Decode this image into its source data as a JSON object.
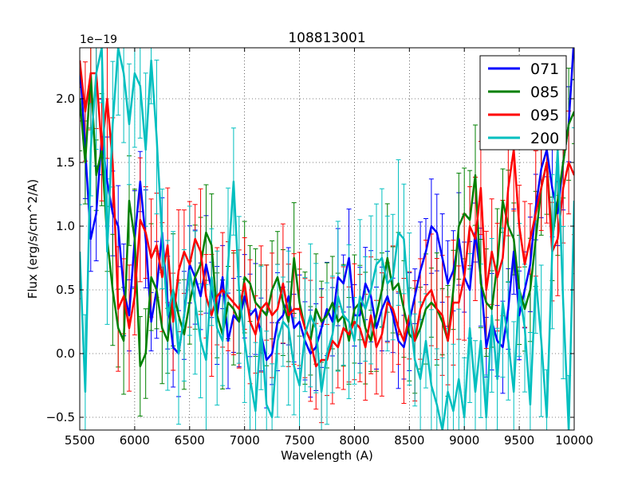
{
  "chart_data": {
    "type": "line",
    "title": "108813001",
    "xlabel": "Wavelength (A)",
    "ylabel": "Flux (erg/s/cm^2/A)",
    "offset_label": "1e−19",
    "xlim": [
      5500,
      10000
    ],
    "ylim": [
      -0.6,
      2.4
    ],
    "xticks": [
      5500,
      6000,
      6500,
      7000,
      7500,
      8000,
      8500,
      9000,
      9500,
      10000
    ],
    "yticks": [
      -0.5,
      0.0,
      0.5,
      1.0,
      1.5,
      2.0
    ],
    "ytick_labels": [
      "−0.5",
      "0.0",
      "0.5",
      "1.0",
      "1.5",
      "2.0"
    ],
    "grid": true,
    "legend_position": "top-right",
    "colors": {
      "071": "#0000ff",
      "085": "#008000",
      "095": "#ff0000",
      "200": "#00bfbf"
    },
    "series": [
      {
        "name": "071",
        "x": [
          5500,
          5550,
          5600,
          5650,
          5700,
          5750,
          5800,
          5850,
          5900,
          5950,
          6000,
          6050,
          6100,
          6150,
          6200,
          6250,
          6300,
          6350,
          6400,
          6450,
          6500,
          6550,
          6600,
          6650,
          6700,
          6750,
          6800,
          6850,
          6900,
          6950,
          7000,
          7050,
          7100,
          7150,
          7200,
          7250,
          7300,
          7350,
          7400,
          7450,
          7500,
          7550,
          7600,
          7650,
          7700,
          7750,
          7800,
          7850,
          7900,
          7950,
          8000,
          8050,
          8100,
          8150,
          8200,
          8250,
          8300,
          8350,
          8400,
          8450,
          8500,
          8550,
          8600,
          8650,
          8700,
          8750,
          8800,
          8850,
          8900,
          8950,
          9000,
          9050,
          9100,
          9150,
          9200,
          9250,
          9300,
          9350,
          9400,
          9450,
          9500,
          9550,
          9600,
          9650,
          9700,
          9750,
          9800,
          9850,
          9900,
          9950,
          10000
        ],
        "values": [
          2.3,
          1.6,
          0.9,
          1.1,
          1.7,
          1.35,
          1.1,
          1.0,
          0.5,
          0.3,
          0.9,
          1.35,
          0.9,
          0.25,
          0.5,
          0.95,
          0.4,
          0.05,
          0.0,
          0.3,
          0.7,
          0.6,
          0.45,
          0.7,
          0.5,
          0.3,
          0.6,
          0.1,
          0.3,
          0.25,
          0.45,
          0.3,
          0.35,
          0.15,
          -0.05,
          0.0,
          0.25,
          0.3,
          0.45,
          0.2,
          0.25,
          0.1,
          0.0,
          0.05,
          0.2,
          0.35,
          0.25,
          0.6,
          0.55,
          0.75,
          0.3,
          0.3,
          0.55,
          0.45,
          0.2,
          0.35,
          0.45,
          0.3,
          0.1,
          0.05,
          0.25,
          0.45,
          0.65,
          0.8,
          1.0,
          0.95,
          0.75,
          0.55,
          0.65,
          0.9,
          0.6,
          0.5,
          0.95,
          0.6,
          0.05,
          0.25,
          0.1,
          0.05,
          0.35,
          0.8,
          0.3,
          0.5,
          0.7,
          1.15,
          1.45,
          1.6,
          1.3,
          1.1,
          1.5,
          1.8,
          2.5
        ]
      },
      {
        "name": "085",
        "x": [
          5500,
          5550,
          5600,
          5650,
          5700,
          5750,
          5800,
          5850,
          5900,
          5950,
          6000,
          6050,
          6100,
          6150,
          6200,
          6250,
          6300,
          6350,
          6400,
          6450,
          6500,
          6550,
          6600,
          6650,
          6700,
          6750,
          6800,
          6850,
          6900,
          6950,
          7000,
          7050,
          7100,
          7150,
          7200,
          7250,
          7300,
          7350,
          7400,
          7450,
          7500,
          7550,
          7600,
          7650,
          7700,
          7750,
          7800,
          7850,
          7900,
          7950,
          8000,
          8050,
          8100,
          8150,
          8200,
          8250,
          8300,
          8350,
          8400,
          8450,
          8500,
          8550,
          8600,
          8650,
          8700,
          8750,
          8800,
          8850,
          8900,
          8950,
          9000,
          9050,
          9100,
          9150,
          9200,
          9250,
          9300,
          9350,
          9400,
          9450,
          9500,
          9550,
          9600,
          9650,
          9700,
          9750,
          9800,
          9850,
          9900,
          9950,
          10000
        ],
        "values": [
          2.0,
          1.5,
          2.2,
          1.4,
          1.6,
          0.9,
          0.5,
          0.2,
          0.1,
          1.2,
          0.9,
          -0.1,
          0.0,
          0.6,
          0.5,
          0.2,
          0.1,
          0.5,
          0.3,
          0.15,
          0.4,
          0.6,
          0.7,
          0.95,
          0.85,
          0.3,
          0.15,
          0.4,
          0.35,
          0.25,
          0.6,
          0.55,
          0.4,
          0.35,
          0.3,
          0.5,
          0.6,
          0.4,
          0.25,
          0.75,
          0.4,
          0.2,
          0.1,
          0.35,
          0.25,
          0.3,
          0.4,
          0.25,
          0.3,
          0.1,
          0.35,
          0.4,
          0.2,
          0.1,
          0.3,
          0.5,
          0.75,
          0.5,
          0.55,
          0.35,
          0.15,
          0.1,
          0.2,
          0.35,
          0.4,
          0.35,
          0.25,
          0.1,
          0.5,
          1.0,
          1.1,
          1.05,
          1.4,
          0.55,
          0.4,
          0.35,
          0.7,
          1.2,
          1.0,
          0.9,
          0.5,
          0.35,
          0.5,
          0.9,
          1.3,
          1.5,
          0.9,
          1.2,
          1.5,
          1.8,
          1.9
        ]
      },
      {
        "name": "095",
        "x": [
          5500,
          5550,
          5600,
          5650,
          5700,
          5750,
          5800,
          5850,
          5900,
          5950,
          6000,
          6050,
          6100,
          6150,
          6200,
          6250,
          6300,
          6350,
          6400,
          6450,
          6500,
          6550,
          6600,
          6650,
          6700,
          6750,
          6800,
          6850,
          6900,
          6950,
          7000,
          7050,
          7100,
          7150,
          7200,
          7250,
          7300,
          7350,
          7400,
          7450,
          7500,
          7550,
          7600,
          7650,
          7700,
          7750,
          7800,
          7850,
          7900,
          7950,
          8000,
          8050,
          8100,
          8150,
          8200,
          8250,
          8300,
          8350,
          8400,
          8450,
          8500,
          8550,
          8600,
          8650,
          8700,
          8750,
          8800,
          8850,
          8900,
          8950,
          9000,
          9050,
          9100,
          9150,
          9200,
          9250,
          9300,
          9350,
          9400,
          9450,
          9500,
          9550,
          9600,
          9650,
          9700,
          9750,
          9800,
          9850,
          9900,
          9950,
          10000
        ],
        "values": [
          2.3,
          1.9,
          2.2,
          2.2,
          1.6,
          2.0,
          1.5,
          0.35,
          0.45,
          0.2,
          0.45,
          1.05,
          0.95,
          0.75,
          0.85,
          0.6,
          0.85,
          0.25,
          0.65,
          0.8,
          0.7,
          0.9,
          0.8,
          0.45,
          0.3,
          0.45,
          0.5,
          0.45,
          0.4,
          0.35,
          0.55,
          0.25,
          0.15,
          0.35,
          0.4,
          0.3,
          0.35,
          0.55,
          0.3,
          0.35,
          0.35,
          0.2,
          0.1,
          -0.1,
          -0.05,
          -0.05,
          0.1,
          0.05,
          0.2,
          0.15,
          0.25,
          0.2,
          0.05,
          0.3,
          0.05,
          0.15,
          0.4,
          0.35,
          0.2,
          0.1,
          0.3,
          0.1,
          0.35,
          0.45,
          0.5,
          0.35,
          0.3,
          0.1,
          0.4,
          0.4,
          0.6,
          1.0,
          0.9,
          1.3,
          0.5,
          0.8,
          0.6,
          0.75,
          1.3,
          1.6,
          1.0,
          0.7,
          0.9,
          1.1,
          1.3,
          1.5,
          0.8,
          0.9,
          1.3,
          1.5,
          1.4
        ]
      },
      {
        "name": "200",
        "x": [
          5500,
          5550,
          5600,
          5650,
          5700,
          5750,
          5800,
          5850,
          5900,
          5950,
          6000,
          6050,
          6100,
          6150,
          6200,
          6250,
          6300,
          6350,
          6400,
          6450,
          6500,
          6550,
          6600,
          6650,
          6700,
          6750,
          6800,
          6850,
          6900,
          6950,
          7000,
          7050,
          7100,
          7150,
          7200,
          7250,
          7300,
          7350,
          7400,
          7450,
          7500,
          7550,
          7600,
          7650,
          7700,
          7750,
          7800,
          7850,
          7900,
          7950,
          8000,
          8050,
          8100,
          8150,
          8200,
          8250,
          8300,
          8350,
          8400,
          8450,
          8500,
          8550,
          8600,
          8650,
          8700,
          8750,
          8800,
          8850,
          8900,
          8950,
          9000,
          9050,
          9100,
          9150,
          9200,
          9250,
          9300,
          9350,
          9400,
          9450,
          9500,
          9550,
          9600,
          9650,
          9700,
          9750,
          9800,
          9850,
          9900,
          9950,
          10000
        ],
        "values": [
          0.8,
          -0.3,
          1.6,
          2.2,
          2.4,
          0.8,
          1.8,
          2.4,
          2.2,
          1.8,
          2.2,
          2.1,
          1.6,
          2.3,
          1.7,
          0.9,
          0.3,
          0.5,
          0.0,
          0.3,
          0.65,
          0.4,
          0.1,
          -0.05,
          0.6,
          0.2,
          0.1,
          0.7,
          1.35,
          0.5,
          0.1,
          -0.2,
          -0.45,
          0.2,
          -0.4,
          -0.5,
          0.1,
          0.25,
          0.2,
          -0.1,
          -0.25,
          0.15,
          0.3,
          0.2,
          -0.3,
          0.0,
          0.15,
          0.45,
          0.3,
          0.25,
          0.1,
          0.45,
          0.35,
          0.5,
          0.7,
          0.75,
          0.55,
          0.6,
          0.95,
          0.9,
          0.35,
          -0.05,
          -0.2,
          0.1,
          -0.25,
          -0.4,
          -0.6,
          -0.3,
          -0.45,
          -0.2,
          -0.5,
          0.2,
          -0.3,
          0.1,
          -0.5,
          0.3,
          -0.2,
          0.4,
          0.1,
          -0.3,
          0.5,
          0.2,
          -0.4,
          0.6,
          0.1,
          -0.5,
          0.8,
          1.6,
          0.4,
          -0.6,
          1.2
        ]
      }
    ]
  }
}
